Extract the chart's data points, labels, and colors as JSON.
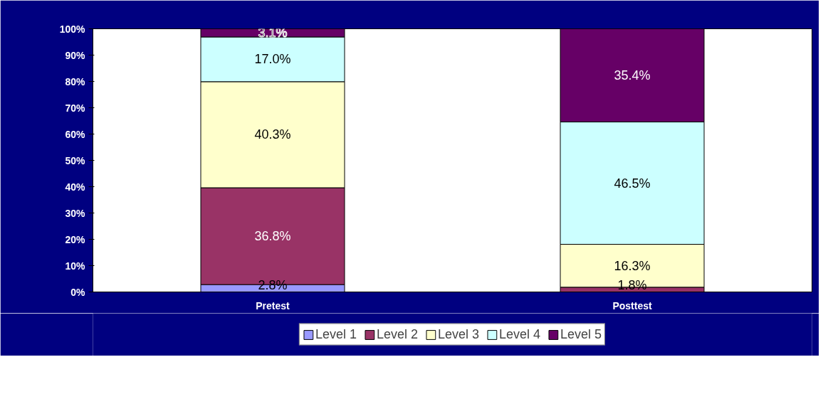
{
  "chart_data": {
    "type": "bar",
    "stacked": true,
    "categories": [
      "Pretest",
      "Posttest"
    ],
    "series": [
      {
        "name": "Level 1",
        "color": "#9999ff",
        "values": [
          2.8,
          null
        ],
        "value_labels": [
          "2.8%",
          null
        ]
      },
      {
        "name": "Level 2",
        "color": "#993366",
        "values": [
          36.8,
          1.8
        ],
        "value_labels": [
          "36.8%",
          "1.8%"
        ]
      },
      {
        "name": "Level 3",
        "color": "#ffffcc",
        "values": [
          40.3,
          16.3
        ],
        "value_labels": [
          "40.3%",
          "16.3%"
        ]
      },
      {
        "name": "Level 4",
        "color": "#ccffff",
        "values": [
          17.0,
          46.5
        ],
        "value_labels": [
          "17.0%",
          "46.5%"
        ]
      },
      {
        "name": "Level 5",
        "color": "#660066",
        "values": [
          3.1,
          35.4
        ],
        "value_labels": [
          "3.1%",
          "35.4%"
        ]
      }
    ],
    "ylim": [
      0,
      100
    ],
    "yticks": [
      {
        "value": 0,
        "label": "0%"
      },
      {
        "value": 10,
        "label": "10%"
      },
      {
        "value": 20,
        "label": "20%"
      },
      {
        "value": 30,
        "label": "30%"
      },
      {
        "value": 40,
        "label": "40%"
      },
      {
        "value": 50,
        "label": "50%"
      },
      {
        "value": 60,
        "label": "60%"
      },
      {
        "value": 70,
        "label": "70%"
      },
      {
        "value": 80,
        "label": "80%"
      },
      {
        "value": 90,
        "label": "90%"
      },
      {
        "value": 100,
        "label": "100%"
      }
    ],
    "grid": false,
    "legend": "bottom"
  }
}
